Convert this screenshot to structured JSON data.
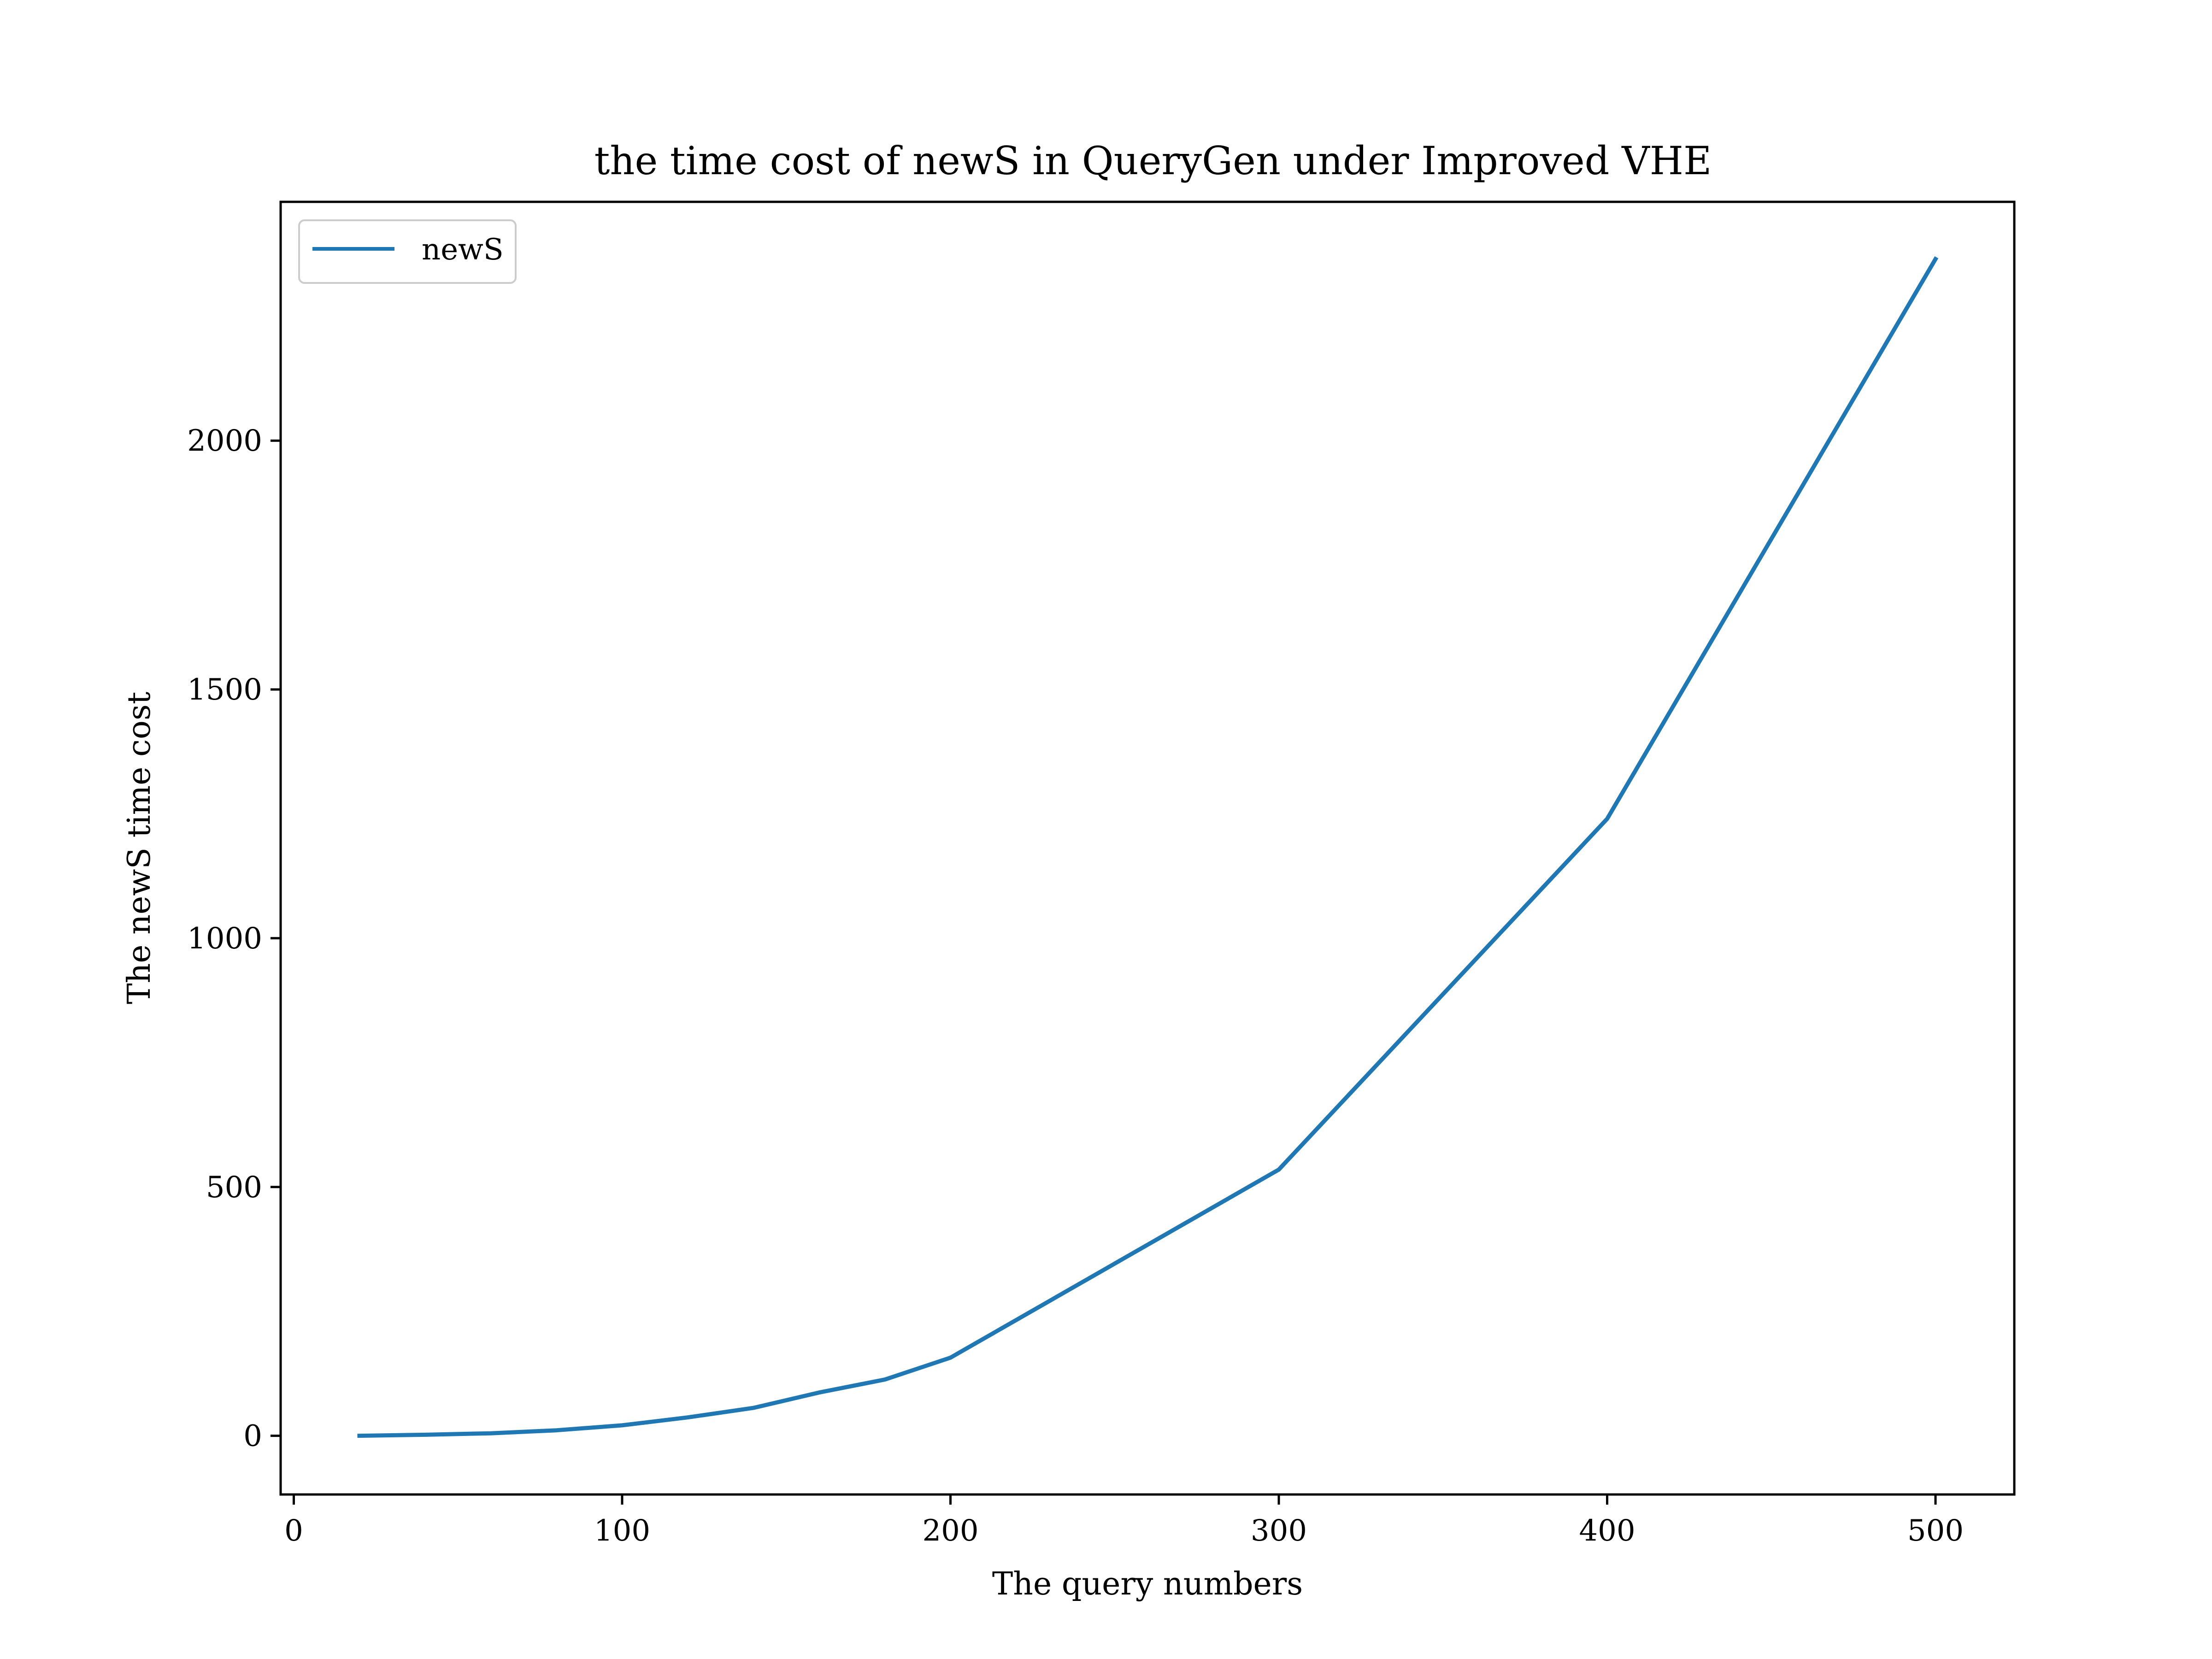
{
  "chart_data": {
    "type": "line",
    "title": "the time cost of newS in QueryGen under Improved VHE",
    "xlabel": "The query numbers",
    "ylabel": "The newS time cost",
    "xlim": [
      -4,
      524
    ],
    "ylim": [
      -118,
      2480
    ],
    "xticks": [
      0,
      100,
      200,
      300,
      400,
      500
    ],
    "yticks": [
      0,
      500,
      1000,
      1500,
      2000
    ],
    "grid": false,
    "legend": "top-left",
    "series": [
      {
        "name": "newS",
        "color": "#1f77b4",
        "x": [
          20,
          40,
          60,
          80,
          100,
          120,
          140,
          160,
          180,
          200,
          300,
          400,
          500
        ],
        "y": [
          0,
          2,
          5,
          11,
          21,
          37,
          56,
          87,
          113,
          157,
          535,
          1240,
          2365
        ]
      }
    ]
  }
}
